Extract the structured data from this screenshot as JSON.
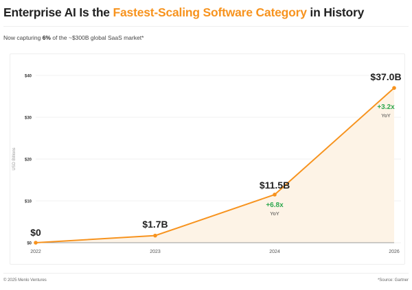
{
  "header": {
    "title_pre": "Enterprise AI Is the ",
    "title_highlight": "Fastest-Scaling Software Category",
    "title_post": " in History",
    "subtitle_pre": "Now capturing ",
    "subtitle_bold": "6%",
    "subtitle_post": " of the ~$300B global SaaS market*"
  },
  "footer": {
    "left": "© 2025 Menlo Ventures",
    "right": "*Source: Gartner"
  },
  "colors": {
    "line": "#f7931e",
    "fill": "#fdf3e6",
    "growth": "#2fa84f"
  },
  "chart_data": {
    "type": "area",
    "categories": [
      "2022",
      "2023",
      "2024",
      "2026"
    ],
    "values": [
      0,
      1.7,
      11.5,
      37.0
    ],
    "data_labels": [
      "$0",
      "$1.7B",
      "$11.5B",
      "$37.0B"
    ],
    "growth_annotations": [
      {
        "index": 2,
        "text": "+6.8x",
        "sub": "YoY"
      },
      {
        "index": 3,
        "text": "+3.2x",
        "sub": "YoY"
      }
    ],
    "ylabel": "USD Billions",
    "yticks": [
      0,
      10,
      20,
      30,
      40
    ],
    "ytick_labels": [
      "$0",
      "$10",
      "$20",
      "$30",
      "$40"
    ],
    "ylim": [
      0,
      40
    ],
    "grid": true
  }
}
